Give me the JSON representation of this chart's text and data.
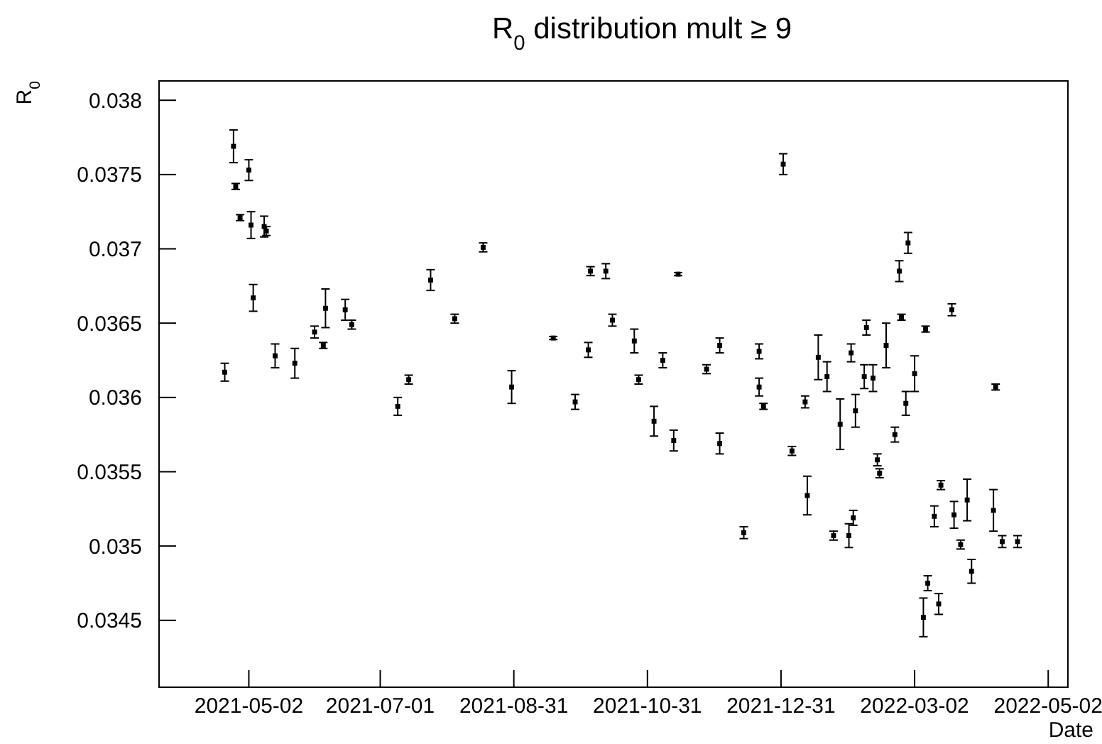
{
  "chart_data": {
    "type": "scatter",
    "title": "R$_{0}$ distribution mult ≥ 9",
    "xlabel": "Date",
    "ylabel": "R$_{0}$",
    "xlim": [
      "2021-03-22",
      "2022-05-11"
    ],
    "xticks": [
      "2021-05-02",
      "2021-07-01",
      "2021-08-31",
      "2021-10-31",
      "2021-12-31",
      "2022-03-02",
      "2022-05-02"
    ],
    "ylim": [
      0.03405,
      0.03813
    ],
    "yticks": [
      0.0345,
      0.035,
      0.0355,
      0.036,
      0.0365,
      0.037,
      0.0375,
      0.038
    ],
    "grid": false,
    "marker": "square",
    "series": [
      {
        "color": "#000000",
        "x": [
          "2021-04-21",
          "2021-04-25",
          "2021-04-26",
          "2021-04-28",
          "2021-05-02",
          "2021-05-03",
          "2021-05-04",
          "2021-05-09",
          "2021-05-10",
          "2021-05-14",
          "2021-05-23",
          "2021-06-01",
          "2021-06-05",
          "2021-06-06",
          "2021-06-15",
          "2021-06-18",
          "2021-07-09",
          "2021-07-14",
          "2021-07-24",
          "2021-08-04",
          "2021-08-17",
          "2021-08-30",
          "2021-09-18",
          "2021-09-28",
          "2021-10-04",
          "2021-10-05",
          "2021-10-12",
          "2021-10-15",
          "2021-10-25",
          "2021-10-27",
          "2021-11-03",
          "2021-11-07",
          "2021-11-12",
          "2021-11-14",
          "2021-11-27",
          "2021-12-03",
          "2021-12-03",
          "2021-12-14",
          "2021-12-21",
          "2021-12-21",
          "2021-12-23",
          "2022-01-01",
          "2022-01-05",
          "2022-01-11",
          "2022-01-12",
          "2022-01-17",
          "2022-01-21",
          "2022-01-24",
          "2022-01-27",
          "2022-01-31",
          "2022-02-01",
          "2022-02-02",
          "2022-02-03",
          "2022-02-07",
          "2022-02-08",
          "2022-02-11",
          "2022-02-13",
          "2022-02-14",
          "2022-02-17",
          "2022-02-21",
          "2022-02-23",
          "2022-02-24",
          "2022-02-26",
          "2022-02-27",
          "2022-03-02",
          "2022-03-06",
          "2022-03-07",
          "2022-03-08",
          "2022-03-11",
          "2022-03-13",
          "2022-03-14",
          "2022-03-19",
          "2022-03-20",
          "2022-03-23",
          "2022-03-26",
          "2022-03-28",
          "2022-04-07",
          "2022-04-08",
          "2022-04-11",
          "2022-04-18"
        ],
        "values": [
          0.03617,
          0.03769,
          0.03742,
          0.03721,
          0.03753,
          0.03716,
          0.03667,
          0.03715,
          0.03712,
          0.03628,
          0.03623,
          0.03644,
          0.03635,
          0.0366,
          0.03659,
          0.03649,
          0.03594,
          0.03612,
          0.03679,
          0.03653,
          0.03701,
          0.03607,
          0.0364,
          0.03597,
          0.03632,
          0.03685,
          0.03685,
          0.03652,
          0.03638,
          0.03612,
          0.03584,
          0.03625,
          0.03571,
          0.03683,
          0.03619,
          0.03635,
          0.03569,
          0.03509,
          0.03631,
          0.03607,
          0.03594,
          0.03757,
          0.03564,
          0.03597,
          0.03534,
          0.03627,
          0.03614,
          0.03507,
          0.03582,
          0.03507,
          0.0363,
          0.03519,
          0.03591,
          0.03614,
          0.03647,
          0.03613,
          0.03558,
          0.03549,
          0.03635,
          0.03575,
          0.03685,
          0.03654,
          0.03596,
          0.03704,
          0.03616,
          0.03452,
          0.03646,
          0.03475,
          0.0352,
          0.03461,
          0.03541,
          0.03659,
          0.03521,
          0.03501,
          0.03531,
          0.03483,
          0.03524,
          0.03607,
          0.03503,
          0.03503
        ],
        "errors": [
          6e-05,
          0.00011,
          2e-05,
          2e-05,
          7e-05,
          9e-05,
          9e-05,
          7e-05,
          3e-05,
          8e-05,
          0.0001,
          4e-05,
          2e-05,
          0.00013,
          7e-05,
          3e-05,
          6e-05,
          3e-05,
          7e-05,
          3e-05,
          3e-05,
          0.00011,
          1e-05,
          5e-05,
          5e-05,
          3e-05,
          5e-05,
          4e-05,
          8e-05,
          3e-05,
          0.0001,
          5e-05,
          7e-05,
          1e-05,
          3e-05,
          5e-05,
          7e-05,
          4e-05,
          5e-05,
          6e-05,
          2e-05,
          7e-05,
          3e-05,
          4e-05,
          0.00013,
          0.00015,
          0.0001,
          3e-05,
          0.00017,
          8e-05,
          6e-05,
          5e-05,
          0.00011,
          8e-05,
          5e-05,
          9e-05,
          4e-05,
          3e-05,
          0.00015,
          5e-05,
          7e-05,
          2e-05,
          8e-05,
          7e-05,
          0.00012,
          0.00013,
          2e-05,
          5e-05,
          7e-05,
          7e-05,
          3e-05,
          4e-05,
          9e-05,
          3e-05,
          0.00014,
          8e-05,
          0.00014,
          2e-05,
          4e-05,
          4e-05
        ]
      }
    ]
  }
}
